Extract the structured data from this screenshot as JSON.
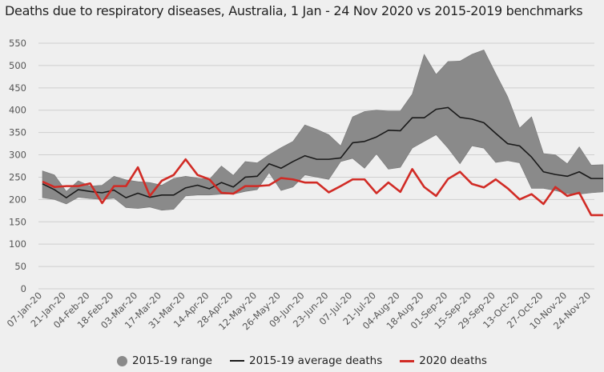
{
  "chart_data": {
    "type": "line",
    "title": "Deaths due to respiratory diseases, Australia, 1 Jan - 24 Nov 2020 vs 2015-2019 benchmarks",
    "xlabel": "",
    "ylabel": "",
    "ylim": [
      0,
      550
    ],
    "yticks": [
      0,
      50,
      100,
      150,
      200,
      250,
      300,
      350,
      400,
      450,
      500,
      550
    ],
    "grid": true,
    "legend_position": "bottom",
    "x_labels_shown": [
      "07-Jan-20",
      "21-Jan-20",
      "04-Feb-20",
      "18-Feb-20",
      "03-Mar-20",
      "17-Mar-20",
      "31-Mar-20",
      "14-Apr-20",
      "28-Apr-20",
      "12-May-20",
      "26-May-20",
      "09-Jun-20",
      "23-Jun-20",
      "07-Jul-20",
      "21-Jul-20",
      "04-Aug-20",
      "18-Aug-20",
      "01-Sep-20",
      "15-Sep-20",
      "29-Sep-20",
      "13-Oct-20",
      "27-Oct-20",
      "10-Nov-20",
      "24-Nov-20"
    ],
    "x": [
      "07-Jan-20",
      "14-Jan-20",
      "21-Jan-20",
      "28-Jan-20",
      "04-Feb-20",
      "11-Feb-20",
      "18-Feb-20",
      "25-Feb-20",
      "03-Mar-20",
      "10-Mar-20",
      "17-Mar-20",
      "24-Mar-20",
      "31-Mar-20",
      "07-Apr-20",
      "14-Apr-20",
      "21-Apr-20",
      "28-Apr-20",
      "05-May-20",
      "12-May-20",
      "19-May-20",
      "26-May-20",
      "02-Jun-20",
      "09-Jun-20",
      "16-Jun-20",
      "23-Jun-20",
      "30-Jun-20",
      "07-Jul-20",
      "14-Jul-20",
      "21-Jul-20",
      "28-Jul-20",
      "04-Aug-20",
      "11-Aug-20",
      "18-Aug-20",
      "25-Aug-20",
      "01-Sep-20",
      "08-Sep-20",
      "15-Sep-20",
      "22-Sep-20",
      "29-Sep-20",
      "06-Oct-20",
      "13-Oct-20",
      "20-Oct-20",
      "27-Oct-20",
      "03-Nov-20",
      "10-Nov-20",
      "17-Nov-20",
      "24-Nov-20",
      "01-Dec-20"
    ],
    "series": [
      {
        "name": "2015-19 range",
        "kind": "band",
        "color": "#8a8a8a",
        "upper": [
          264,
          255,
          218,
          242,
          230,
          232,
          252,
          244,
          240,
          238,
          232,
          247,
          252,
          248,
          245,
          275,
          254,
          285,
          282,
          300,
          316,
          330,
          367,
          357,
          345,
          320,
          385,
          397,
          400,
          398,
          398,
          436,
          525,
          480,
          509,
          510,
          525,
          535,
          482,
          430,
          360,
          385,
          303,
          300,
          280,
          318,
          277,
          278
        ],
        "lower": [
          204,
          200,
          190,
          205,
          202,
          200,
          203,
          182,
          180,
          183,
          176,
          178,
          208,
          210,
          210,
          212,
          212,
          218,
          222,
          260,
          220,
          228,
          255,
          250,
          245,
          285,
          292,
          270,
          302,
          268,
          272,
          315,
          330,
          345,
          315,
          280,
          320,
          315,
          283,
          287,
          282,
          225,
          225,
          220,
          213,
          212,
          215,
          217
        ]
      },
      {
        "name": "2015-19 average deaths",
        "color": "#1a1a1a",
        "values": [
          235,
          222,
          204,
          222,
          218,
          215,
          221,
          204,
          214,
          205,
          210,
          210,
          226,
          232,
          224,
          238,
          228,
          250,
          252,
          280,
          270,
          285,
          298,
          290,
          290,
          293,
          327,
          330,
          340,
          355,
          354,
          383,
          383,
          402,
          406,
          384,
          380,
          372,
          348,
          325,
          320,
          295,
          262,
          256,
          252,
          262,
          247,
          247
        ]
      },
      {
        "name": "2020 deaths",
        "color": "#d12b25",
        "values": [
          240,
          228,
          230,
          230,
          236,
          192,
          230,
          230,
          272,
          208,
          242,
          255,
          290,
          255,
          245,
          215,
          213,
          230,
          230,
          232,
          248,
          245,
          238,
          238,
          216,
          230,
          245,
          245,
          214,
          238,
          217,
          268,
          228,
          208,
          246,
          262,
          235,
          227,
          245,
          225,
          200,
          212,
          190,
          228,
          208,
          215,
          165,
          165
        ]
      }
    ]
  }
}
